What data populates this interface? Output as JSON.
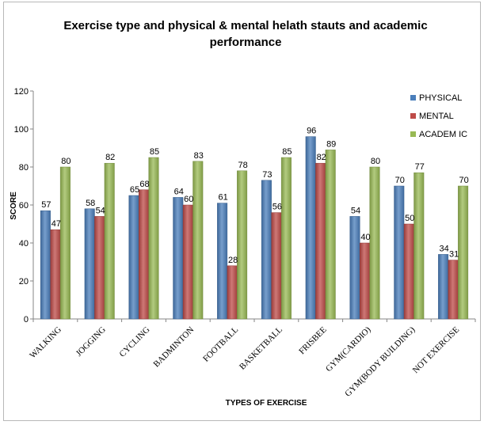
{
  "chart_data": {
    "type": "bar",
    "title_lines": [
      "Exercise type and physical & mental helath stauts and academic",
      "performance"
    ],
    "xlabel": "TYPES OF EXERCISE",
    "ylabel": "SCORE",
    "ylim": [
      0,
      120
    ],
    "yticks": [
      0,
      20,
      40,
      60,
      80,
      100,
      120
    ],
    "categories": [
      "WALKING",
      "JOGGING",
      "CYCLING",
      "BADMINTON",
      "FOOTBALL",
      "BASKETBALL",
      "FRISBEE",
      "GYM(CARDIO)",
      "GYM(BODY BUILDING)",
      "NOT EXERCISE"
    ],
    "series": [
      {
        "name": "PHYSICAL",
        "color": "#4a7ebb",
        "values": [
          57,
          58,
          65,
          64,
          61,
          73,
          96,
          54,
          70,
          34
        ]
      },
      {
        "name": "MENTAL",
        "color": "#be4b48",
        "values": [
          47,
          54,
          68,
          60,
          28,
          56,
          82,
          40,
          50,
          31
        ]
      },
      {
        "name": "ACADEM IC",
        "color": "#98b954",
        "values": [
          80,
          82,
          85,
          83,
          78,
          85,
          89,
          80,
          77,
          70
        ]
      }
    ],
    "grid": false,
    "legend_position": "top-right",
    "data_labels": true
  }
}
